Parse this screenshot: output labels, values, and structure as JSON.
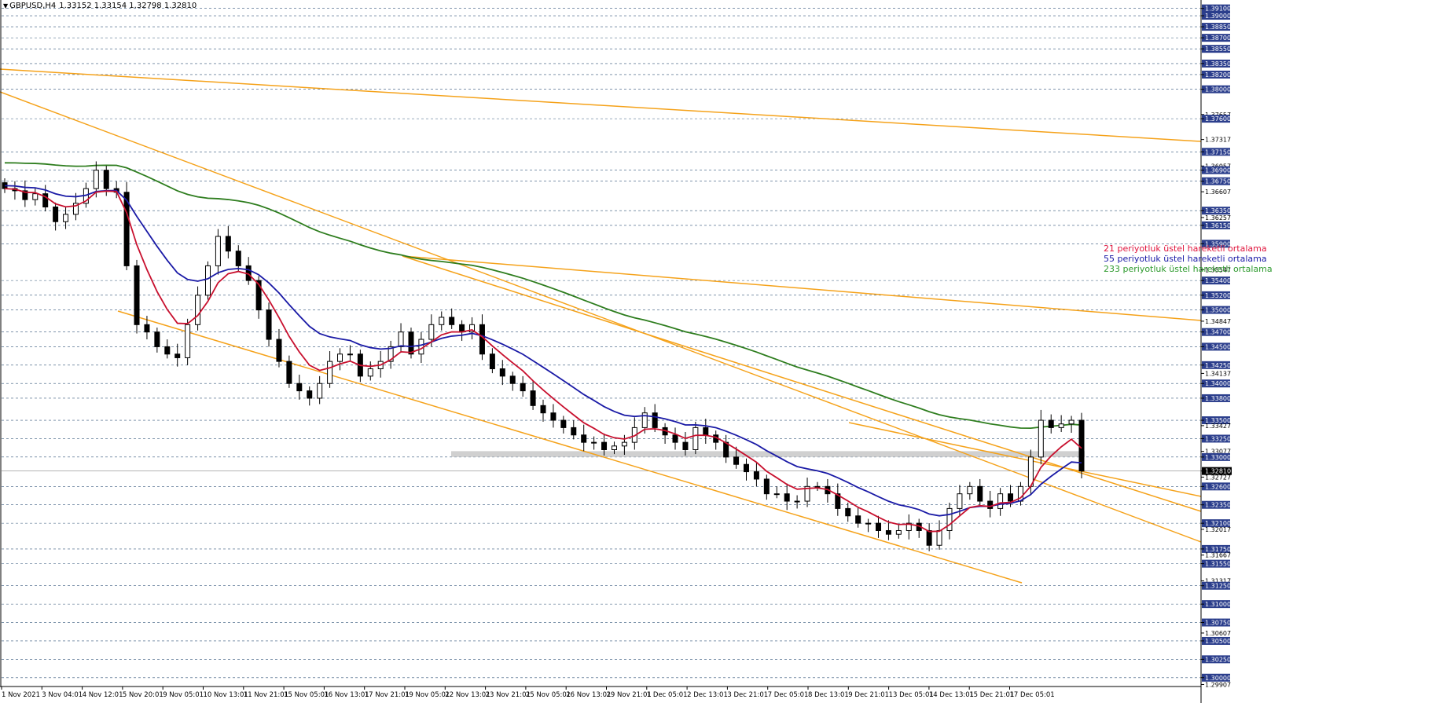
{
  "header": {
    "symbol": "GBPUSD,H4",
    "ohlc": "1.33152 1.33154 1.32798 1.32810"
  },
  "legend": [
    {
      "text": "21 periyotluk üstel hareketli ortalama",
      "color": "#e0143c"
    },
    {
      "text": "55 periyotluk üstel hareketli ortalama",
      "color": "#1a1aa6"
    },
    {
      "text": "233 periyotluk üstel hareketli ortalama",
      "color": "#2e9a2e"
    }
  ],
  "colors": {
    "grid": "#33557a",
    "trendline": "#f5a21a",
    "ema21": "#c8102e",
    "ema55": "#1a1aa6",
    "ema233": "#2e7d1e",
    "current_price_bg": "#2b3e8c",
    "candle": "#000000",
    "zone": "#c8c8c8"
  },
  "chart_data": {
    "type": "candlestick",
    "symbol": "GBPUSD",
    "timeframe": "H4",
    "y_labels": [
      "1.39100",
      "1.39000",
      "1.38850",
      "1.38700",
      "1.38550",
      "1.38350",
      "1.38200",
      "1.38000",
      "1.37657",
      "1.37600",
      "1.37317",
      "1.37150",
      "1.36957",
      "1.36900",
      "1.36750",
      "1.36607",
      "1.36350",
      "1.36257",
      "1.36150",
      "1.35900",
      "1.35547",
      "1.35400",
      "1.35200",
      "1.35000",
      "1.34847",
      "1.34700",
      "1.34500",
      "1.34250",
      "1.34137",
      "1.34000",
      "1.33800",
      "1.33500",
      "1.33427",
      "1.33250",
      "1.33077",
      "1.33000",
      "1.32810",
      "1.32727",
      "1.32600",
      "1.32350",
      "1.32100",
      "1.32017",
      "1.31750",
      "1.31667",
      "1.31550",
      "1.31317",
      "1.31250",
      "1.31000",
      "1.30750",
      "1.30607",
      "1.30500",
      "1.30250",
      "1.30000",
      "1.29907"
    ],
    "current_price": "1.32810",
    "ylim": [
      1.2988,
      1.3915
    ],
    "x_labels": [
      "1 Nov 2021",
      "3 Nov 04:01",
      "4 Nov 12:01",
      "5 Nov 20:01",
      "9 Nov 05:01",
      "10 Nov 13:01",
      "11 Nov 21:01",
      "15 Nov 05:01",
      "16 Nov 13:01",
      "17 Nov 21:01",
      "19 Nov 05:01",
      "22 Nov 13:01",
      "23 Nov 21:01",
      "25 Nov 05:01",
      "26 Nov 13:01",
      "29 Nov 21:01",
      "1 Dec 05:01",
      "2 Dec 13:01",
      "3 Dec 21:01",
      "7 Dec 05:01",
      "8 Dec 13:01",
      "9 Dec 21:01",
      "13 Dec 05:01",
      "14 Dec 13:01",
      "15 Dec 21:01",
      "17 Dec 05:01"
    ],
    "candle_closes": [
      1.3665,
      1.3662,
      1.365,
      1.3658,
      1.364,
      1.362,
      1.363,
      1.3645,
      1.3665,
      1.369,
      1.3665,
      1.366,
      1.356,
      1.348,
      1.347,
      1.345,
      1.344,
      1.3435,
      1.348,
      1.352,
      1.356,
      1.36,
      1.358,
      1.356,
      1.354,
      1.35,
      1.346,
      1.343,
      1.34,
      1.339,
      1.338,
      1.34,
      1.343,
      1.344,
      1.344,
      1.341,
      1.342,
      1.343,
      1.345,
      1.347,
      1.344,
      1.346,
      1.348,
      1.349,
      1.348,
      1.347,
      1.348,
      1.344,
      1.342,
      1.341,
      1.34,
      1.339,
      1.337,
      1.336,
      1.335,
      1.334,
      1.333,
      1.332,
      1.332,
      1.331,
      1.3315,
      1.332,
      1.334,
      1.336,
      1.334,
      1.333,
      1.332,
      1.331,
      1.334,
      1.333,
      1.332,
      1.33,
      1.329,
      1.328,
      1.327,
      1.325,
      1.325,
      1.324,
      1.324,
      1.326,
      1.326,
      1.325,
      1.323,
      1.322,
      1.321,
      1.321,
      1.32,
      1.3195,
      1.32,
      1.321,
      1.32,
      1.318,
      1.32,
      1.323,
      1.325,
      1.326,
      1.324,
      1.323,
      1.325,
      1.324,
      1.326,
      1.33,
      1.335,
      1.334,
      1.3345,
      1.335,
      1.3281
    ],
    "series": [
      {
        "name": "21 periyotluk üstel hareketli ortalama",
        "type": "line"
      },
      {
        "name": "55 periyotluk üstel hareketli ortalama",
        "type": "line"
      },
      {
        "name": "233 periyotluk üstel hareketli ortalama",
        "type": "line"
      }
    ],
    "grid": true,
    "legend_position": "center-right"
  }
}
